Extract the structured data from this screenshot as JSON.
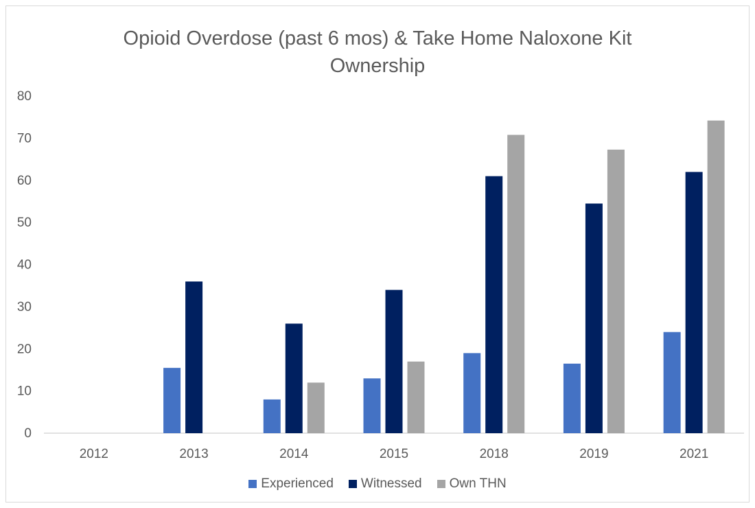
{
  "chart_data": {
    "type": "bar",
    "title": "Opioid Overdose (past 6 mos) & Take Home Naloxone Kit\nOwnership",
    "categories": [
      "2012",
      "2013",
      "2014",
      "2015",
      "2018",
      "2019",
      "2021"
    ],
    "series": [
      {
        "name": "Experienced",
        "color": "#4472c4",
        "values": [
          0,
          15.5,
          8,
          13,
          19,
          16.5,
          24
        ]
      },
      {
        "name": "Witnessed",
        "color": "#002060",
        "values": [
          0,
          36,
          26,
          34,
          61,
          54.5,
          62
        ]
      },
      {
        "name": "Own THN",
        "color": "#a5a5a5",
        "values": [
          0,
          0,
          12,
          17,
          70.8,
          67.3,
          74.2
        ]
      }
    ],
    "ylim": [
      0,
      80
    ],
    "yticks": [
      "0",
      "10",
      "20",
      "30",
      "40",
      "50",
      "60",
      "70",
      "80"
    ],
    "grid": false,
    "legend_position": "bottom"
  }
}
